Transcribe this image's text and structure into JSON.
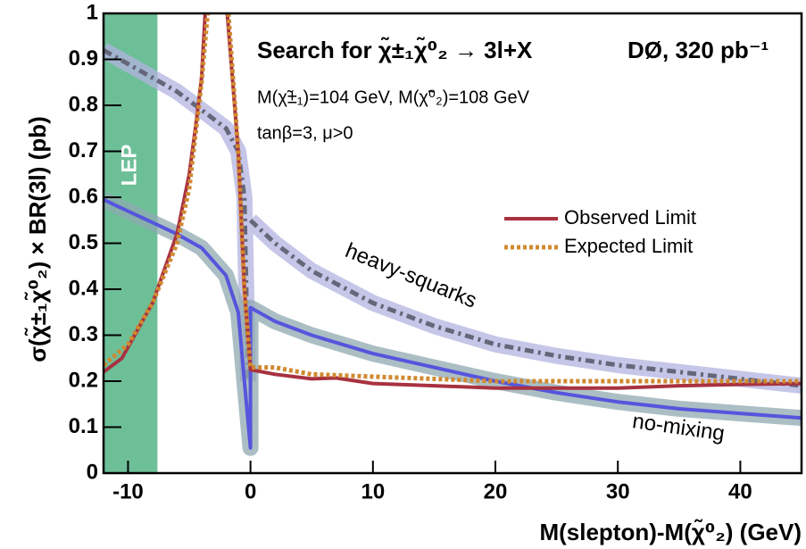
{
  "chart_data": {
    "type": "line",
    "title": "Search for χ̃±₁χ̃⁰₂ → 3l+X",
    "experiment": "DØ, 320 pb⁻¹",
    "annotations": [
      "M(χ̃±₁)=104 GeV, M(χ̃⁰₂)=108 GeV",
      "tanβ=3, μ>0"
    ],
    "x_label": "M(slepton)-M(χ̃⁰₂) (GeV)",
    "y_label": "σ(χ̃±₁χ̃⁰₂) × BR(3l) (pb)",
    "xlim": [
      -12,
      45
    ],
    "ylim": [
      0,
      1
    ],
    "xticks": [
      -10,
      0,
      10,
      20,
      30,
      40
    ],
    "yticks": [
      0,
      0.1,
      0.2,
      0.3,
      0.4,
      0.5,
      0.6,
      0.7,
      0.8,
      0.9,
      1
    ],
    "shaded_region": {
      "label": "LEP",
      "x": [
        -12,
        -7.6
      ],
      "color": "#6dbf98"
    },
    "series": [
      {
        "name": "heavy-squarks",
        "color": "#66667a",
        "band_color": "#b3b3e0",
        "style": "dashdot",
        "in_legend": false,
        "x": [
          -12,
          -10,
          -8,
          -6,
          -4,
          -2,
          -1,
          -0.5,
          -0.2,
          null,
          0,
          2,
          5,
          10,
          15,
          20,
          25,
          30,
          35,
          40,
          45
        ],
        "values": [
          0.92,
          0.89,
          0.86,
          0.83,
          0.79,
          0.75,
          0.7,
          0.6,
          0.2,
          null,
          0.55,
          0.5,
          0.44,
          0.37,
          0.32,
          0.28,
          0.255,
          0.235,
          0.22,
          0.205,
          0.19
        ]
      },
      {
        "name": "no-mixing",
        "color": "#5555dd",
        "band_color": "#8fa8b0",
        "style": "solid",
        "in_legend": false,
        "x": [
          -12,
          -10,
          -8,
          -6,
          -4,
          -2,
          -1,
          -0.5,
          0,
          0,
          2,
          5,
          10,
          15,
          20,
          25,
          30,
          35,
          40,
          45
        ],
        "values": [
          0.595,
          0.57,
          0.545,
          0.52,
          0.49,
          0.43,
          0.35,
          0.2,
          0.055,
          0.36,
          0.33,
          0.3,
          0.26,
          0.23,
          0.2,
          0.175,
          0.155,
          0.14,
          0.13,
          0.12
        ]
      },
      {
        "name": "Observed Limit",
        "color": "#a83240",
        "style": "solid",
        "in_legend": true,
        "x": [
          -12,
          -10.5,
          -8,
          -6,
          -5,
          -4.5,
          -4,
          -3.7,
          null,
          -1.9,
          -1,
          -0.5,
          0,
          2,
          5,
          7,
          10,
          15,
          20,
          25,
          30,
          35,
          40,
          45
        ],
        "values": [
          0.22,
          0.25,
          0.37,
          0.52,
          0.65,
          0.75,
          0.86,
          1,
          null,
          1,
          0.7,
          0.4,
          0.225,
          0.215,
          0.205,
          0.207,
          0.195,
          0.19,
          0.185,
          0.185,
          0.185,
          0.19,
          0.193,
          0.195
        ]
      },
      {
        "name": "Expected Limit",
        "color": "#d08a30",
        "style": "dotted",
        "in_legend": true,
        "x": [
          -12,
          -10,
          -8,
          -6,
          -5,
          -4,
          -3.5,
          null,
          -1.8,
          -1,
          -0.5,
          0,
          2,
          5,
          10,
          20,
          30,
          45
        ],
        "values": [
          0.235,
          0.28,
          0.37,
          0.5,
          0.62,
          0.85,
          1,
          null,
          1,
          0.7,
          0.4,
          0.23,
          0.23,
          0.215,
          0.21,
          0.2,
          0.2,
          0.2
        ]
      }
    ]
  }
}
